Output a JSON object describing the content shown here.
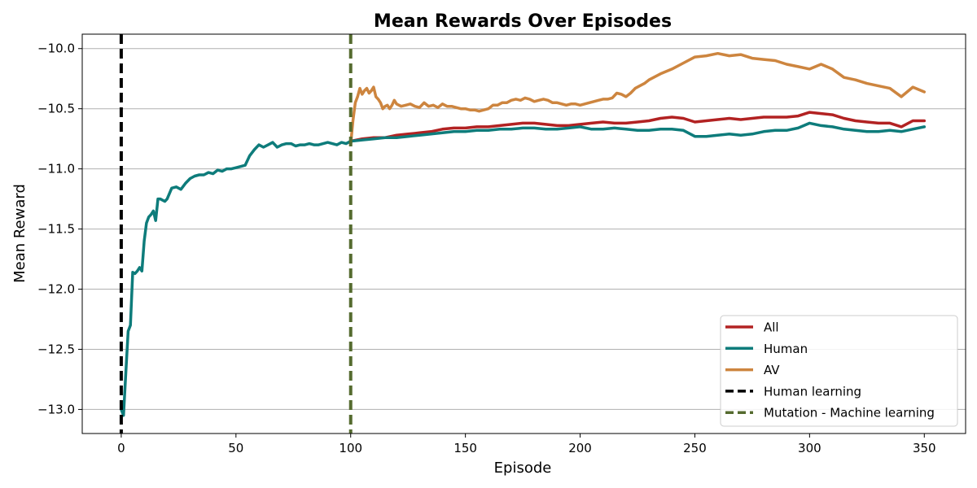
{
  "chart_data": {
    "type": "line",
    "title": "Mean Rewards Over Episodes",
    "xlabel": "Episode",
    "ylabel": "Mean Reward",
    "xlim": [
      -17,
      368
    ],
    "ylim": [
      -13.2,
      -9.88
    ],
    "xticks": [
      0,
      50,
      100,
      150,
      200,
      250,
      300,
      350
    ],
    "xtick_labels": [
      "0",
      "50",
      "100",
      "150",
      "200",
      "250",
      "300",
      "350"
    ],
    "yticks": [
      -13.0,
      -12.5,
      -12.0,
      -11.5,
      -11.0,
      -10.5,
      -10.0
    ],
    "ytick_labels": [
      "−13.0",
      "−12.5",
      "−12.0",
      "−11.5",
      "−11.0",
      "−10.5",
      "−10.0"
    ],
    "grid": "horizontal",
    "legend_position": "lower-right",
    "series": [
      {
        "name": "All",
        "color": "#b22222",
        "x": [
          100,
          105,
          110,
          115,
          120,
          125,
          130,
          135,
          140,
          145,
          150,
          155,
          160,
          165,
          170,
          175,
          180,
          185,
          190,
          195,
          200,
          205,
          210,
          215,
          220,
          225,
          230,
          235,
          240,
          245,
          250,
          255,
          260,
          265,
          270,
          275,
          280,
          285,
          290,
          295,
          300,
          305,
          310,
          315,
          320,
          325,
          330,
          335,
          340,
          345,
          350
        ],
        "y": [
          -10.77,
          -10.75,
          -10.74,
          -10.74,
          -10.72,
          -10.71,
          -10.7,
          -10.69,
          -10.67,
          -10.66,
          -10.66,
          -10.65,
          -10.65,
          -10.64,
          -10.63,
          -10.62,
          -10.62,
          -10.63,
          -10.64,
          -10.64,
          -10.63,
          -10.62,
          -10.61,
          -10.62,
          -10.62,
          -10.61,
          -10.6,
          -10.58,
          -10.57,
          -10.58,
          -10.61,
          -10.6,
          -10.59,
          -10.58,
          -10.59,
          -10.58,
          -10.57,
          -10.57,
          -10.57,
          -10.56,
          -10.53,
          -10.54,
          -10.55,
          -10.58,
          -10.6,
          -10.61,
          -10.62,
          -10.62,
          -10.65,
          -10.6,
          -10.6
        ]
      },
      {
        "name": "Human",
        "color": "#0e7c7b",
        "x": [
          0,
          1,
          2,
          3,
          4,
          5,
          6,
          7,
          8,
          9,
          10,
          11,
          12,
          13,
          14,
          15,
          16,
          17,
          18,
          19,
          20,
          22,
          24,
          26,
          28,
          30,
          32,
          34,
          36,
          38,
          40,
          42,
          44,
          46,
          48,
          50,
          52,
          54,
          56,
          58,
          60,
          62,
          64,
          66,
          68,
          70,
          72,
          74,
          76,
          78,
          80,
          82,
          84,
          86,
          88,
          90,
          92,
          94,
          96,
          98,
          100,
          105,
          110,
          115,
          120,
          125,
          130,
          135,
          140,
          145,
          150,
          155,
          160,
          165,
          170,
          175,
          180,
          185,
          190,
          195,
          200,
          205,
          210,
          215,
          220,
          225,
          230,
          235,
          240,
          245,
          250,
          255,
          260,
          265,
          270,
          275,
          280,
          285,
          290,
          295,
          300,
          305,
          310,
          315,
          320,
          325,
          330,
          335,
          340,
          345,
          350
        ],
        "y": [
          -13.0,
          -13.05,
          -12.7,
          -12.35,
          -12.3,
          -11.86,
          -11.87,
          -11.85,
          -11.82,
          -11.85,
          -11.6,
          -11.45,
          -11.4,
          -11.38,
          -11.35,
          -11.43,
          -11.25,
          -11.25,
          -11.26,
          -11.27,
          -11.25,
          -11.16,
          -11.15,
          -11.17,
          -11.12,
          -11.08,
          -11.06,
          -11.05,
          -11.05,
          -11.03,
          -11.04,
          -11.01,
          -11.02,
          -11.0,
          -11.0,
          -10.99,
          -10.98,
          -10.97,
          -10.89,
          -10.84,
          -10.8,
          -10.82,
          -10.8,
          -10.78,
          -10.82,
          -10.8,
          -10.79,
          -10.79,
          -10.81,
          -10.8,
          -10.8,
          -10.79,
          -10.8,
          -10.8,
          -10.79,
          -10.78,
          -10.79,
          -10.8,
          -10.78,
          -10.79,
          -10.77,
          -10.76,
          -10.75,
          -10.74,
          -10.74,
          -10.73,
          -10.72,
          -10.71,
          -10.7,
          -10.69,
          -10.69,
          -10.68,
          -10.68,
          -10.67,
          -10.67,
          -10.66,
          -10.66,
          -10.67,
          -10.67,
          -10.66,
          -10.65,
          -10.67,
          -10.67,
          -10.66,
          -10.67,
          -10.68,
          -10.68,
          -10.67,
          -10.67,
          -10.68,
          -10.73,
          -10.73,
          -10.72,
          -10.71,
          -10.72,
          -10.71,
          -10.69,
          -10.68,
          -10.68,
          -10.66,
          -10.62,
          -10.64,
          -10.65,
          -10.67,
          -10.68,
          -10.69,
          -10.69,
          -10.68,
          -10.69,
          -10.67,
          -10.65
        ]
      },
      {
        "name": "AV",
        "color": "#cd853f",
        "x": [
          100,
          101,
          102,
          103,
          104,
          105,
          106,
          107,
          108,
          109,
          110,
          111,
          112,
          113,
          114,
          115,
          116,
          117,
          118,
          119,
          120,
          122,
          124,
          126,
          128,
          130,
          132,
          134,
          136,
          138,
          140,
          142,
          144,
          146,
          148,
          150,
          152,
          154,
          156,
          158,
          160,
          162,
          164,
          166,
          168,
          170,
          172,
          174,
          176,
          178,
          180,
          182,
          184,
          186,
          188,
          190,
          192,
          194,
          196,
          198,
          200,
          202,
          204,
          206,
          208,
          210,
          212,
          214,
          216,
          218,
          220,
          222,
          224,
          226,
          228,
          230,
          235,
          240,
          245,
          250,
          255,
          260,
          265,
          270,
          275,
          280,
          285,
          290,
          295,
          300,
          305,
          310,
          315,
          320,
          325,
          330,
          335,
          340,
          345,
          350
        ],
        "y": [
          -10.8,
          -10.6,
          -10.45,
          -10.4,
          -10.33,
          -10.38,
          -10.35,
          -10.33,
          -10.37,
          -10.35,
          -10.32,
          -10.4,
          -10.42,
          -10.45,
          -10.5,
          -10.48,
          -10.47,
          -10.5,
          -10.47,
          -10.43,
          -10.46,
          -10.48,
          -10.47,
          -10.46,
          -10.48,
          -10.49,
          -10.45,
          -10.48,
          -10.47,
          -10.49,
          -10.46,
          -10.48,
          -10.48,
          -10.49,
          -10.5,
          -10.5,
          -10.51,
          -10.51,
          -10.52,
          -10.51,
          -10.5,
          -10.47,
          -10.47,
          -10.45,
          -10.45,
          -10.43,
          -10.42,
          -10.43,
          -10.41,
          -10.42,
          -10.44,
          -10.43,
          -10.42,
          -10.43,
          -10.45,
          -10.45,
          -10.46,
          -10.47,
          -10.46,
          -10.46,
          -10.47,
          -10.46,
          -10.45,
          -10.44,
          -10.43,
          -10.42,
          -10.42,
          -10.41,
          -10.37,
          -10.38,
          -10.4,
          -10.37,
          -10.33,
          -10.31,
          -10.29,
          -10.26,
          -10.21,
          -10.17,
          -10.12,
          -10.07,
          -10.06,
          -10.04,
          -10.06,
          -10.05,
          -10.08,
          -10.09,
          -10.1,
          -10.13,
          -10.15,
          -10.17,
          -10.13,
          -10.17,
          -10.24,
          -10.26,
          -10.29,
          -10.31,
          -10.33,
          -10.4,
          -10.32,
          -10.36
        ]
      }
    ],
    "vlines": [
      {
        "name": "Human learning",
        "x": 0,
        "color": "#000000",
        "style": "dashed"
      },
      {
        "name": "Mutation - Machine learning",
        "x": 100,
        "color": "#556b2f",
        "style": "dashed"
      }
    ],
    "legend": [
      {
        "label": "All",
        "color": "#b22222",
        "style": "solid"
      },
      {
        "label": "Human",
        "color": "#0e7c7b",
        "style": "solid"
      },
      {
        "label": "AV",
        "color": "#cd853f",
        "style": "solid"
      },
      {
        "label": "Human learning",
        "color": "#000000",
        "style": "dashed"
      },
      {
        "label": "Mutation - Machine learning",
        "color": "#556b2f",
        "style": "dashed"
      }
    ]
  }
}
